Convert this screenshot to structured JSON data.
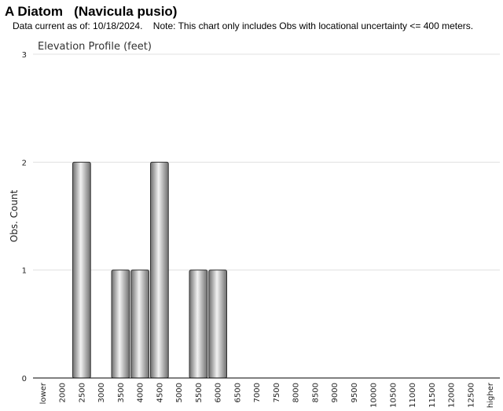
{
  "header": {
    "title": "A Diatom   (Navicula pusio)",
    "note": "Data current as of: 10/18/2024.    Note: This chart only includes Obs with locational uncertainty <= 400 meters."
  },
  "chart_data": {
    "type": "bar",
    "title": "Elevation Profile (feet)",
    "xlabel": "",
    "ylabel": "Obs. Count",
    "ylim": [
      0,
      3
    ],
    "yticks": [
      "0",
      "1",
      "2",
      "3"
    ],
    "grid": true,
    "legend": "none",
    "categories": [
      "lower",
      "2000",
      "2500",
      "3000",
      "3500",
      "4000",
      "4500",
      "5000",
      "5500",
      "6000",
      "6500",
      "7000",
      "7500",
      "8000",
      "8500",
      "9000",
      "9500",
      "10000",
      "10500",
      "11000",
      "11500",
      "12000",
      "12500",
      "higher"
    ],
    "values": [
      0,
      0,
      2,
      0,
      1,
      1,
      2,
      0,
      1,
      1,
      0,
      0,
      0,
      0,
      0,
      0,
      0,
      0,
      0,
      0,
      0,
      0,
      0,
      0
    ],
    "colors": {
      "bar_dark": "#6e6e6e",
      "bar_light": "#f2f2f2",
      "bar_stroke": "#333333",
      "grid": "#e0e0e0",
      "axis": "#000000"
    }
  }
}
